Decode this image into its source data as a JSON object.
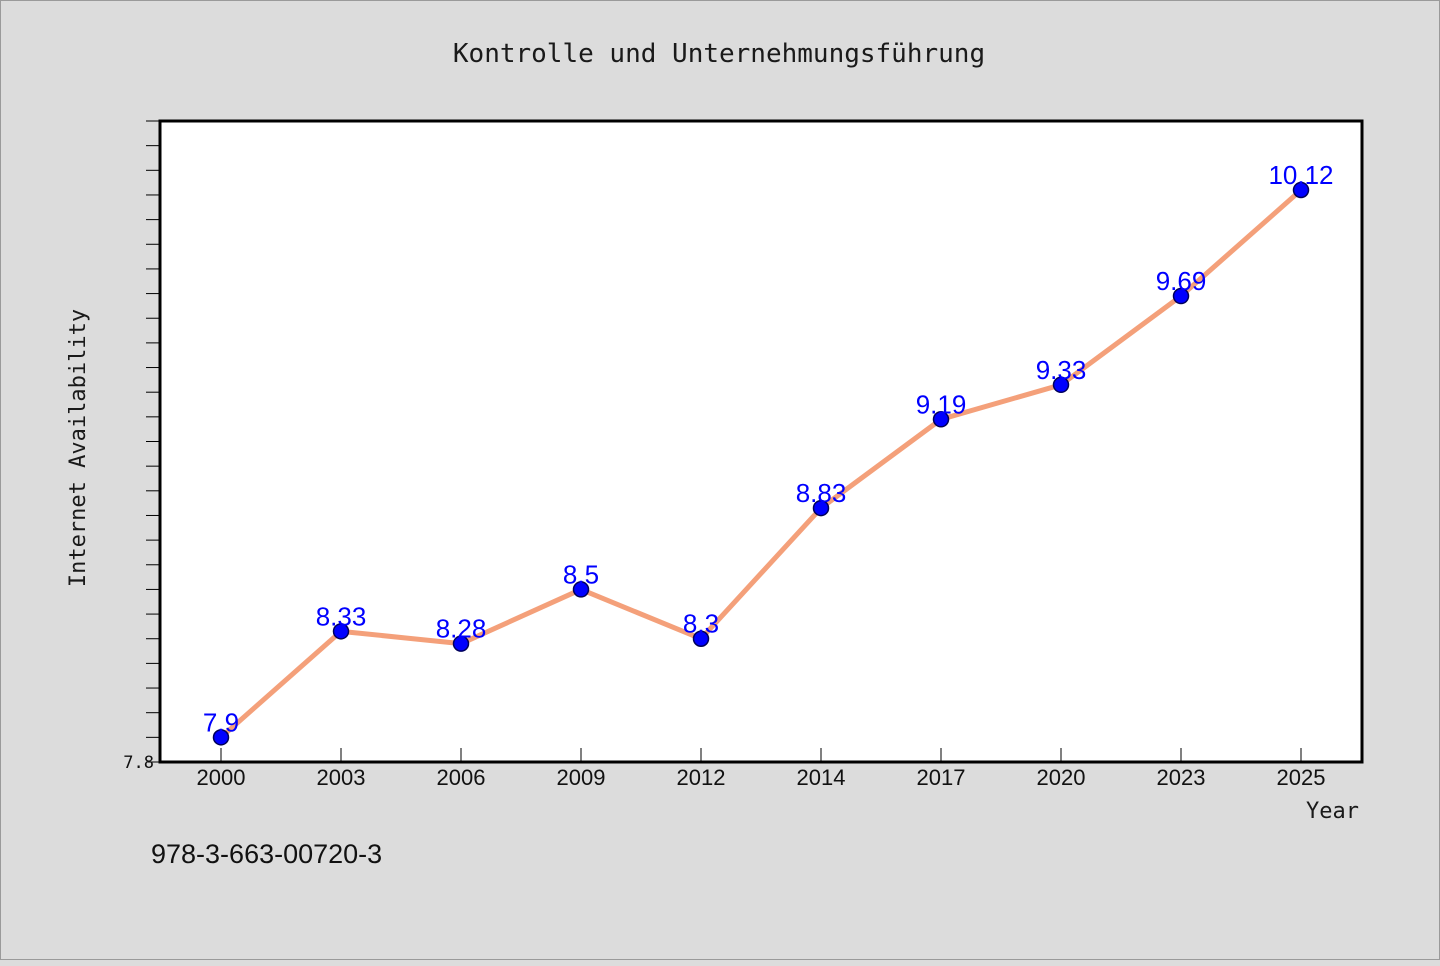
{
  "chart_data": {
    "type": "line",
    "title": "Kontrolle und Unternehmungsführung",
    "xlabel": "Year",
    "ylabel": "Internet Availability",
    "categories": [
      "2000",
      "2003",
      "2006",
      "2009",
      "2012",
      "2014",
      "2017",
      "2020",
      "2023",
      "2025"
    ],
    "series": [
      {
        "values": [
          7.9,
          8.33,
          8.28,
          8.5,
          8.3,
          8.83,
          9.19,
          9.33,
          9.69,
          10.12
        ]
      }
    ],
    "data_labels": [
      "7.9",
      "8.33",
      "8.28",
      "8.5",
      "8.3",
      "8.83",
      "9.19",
      "9.33",
      "9.69",
      "10.12"
    ],
    "ylim": [
      7.8,
      10.4
    ],
    "y_tick_labels": [
      "7.8"
    ],
    "y_minor_tick_step": 0.1,
    "grid": false,
    "line_color": "#f4a07a",
    "marker_color": "#0000ff"
  },
  "footer": {
    "isbn": "978-3-663-00720-3"
  }
}
